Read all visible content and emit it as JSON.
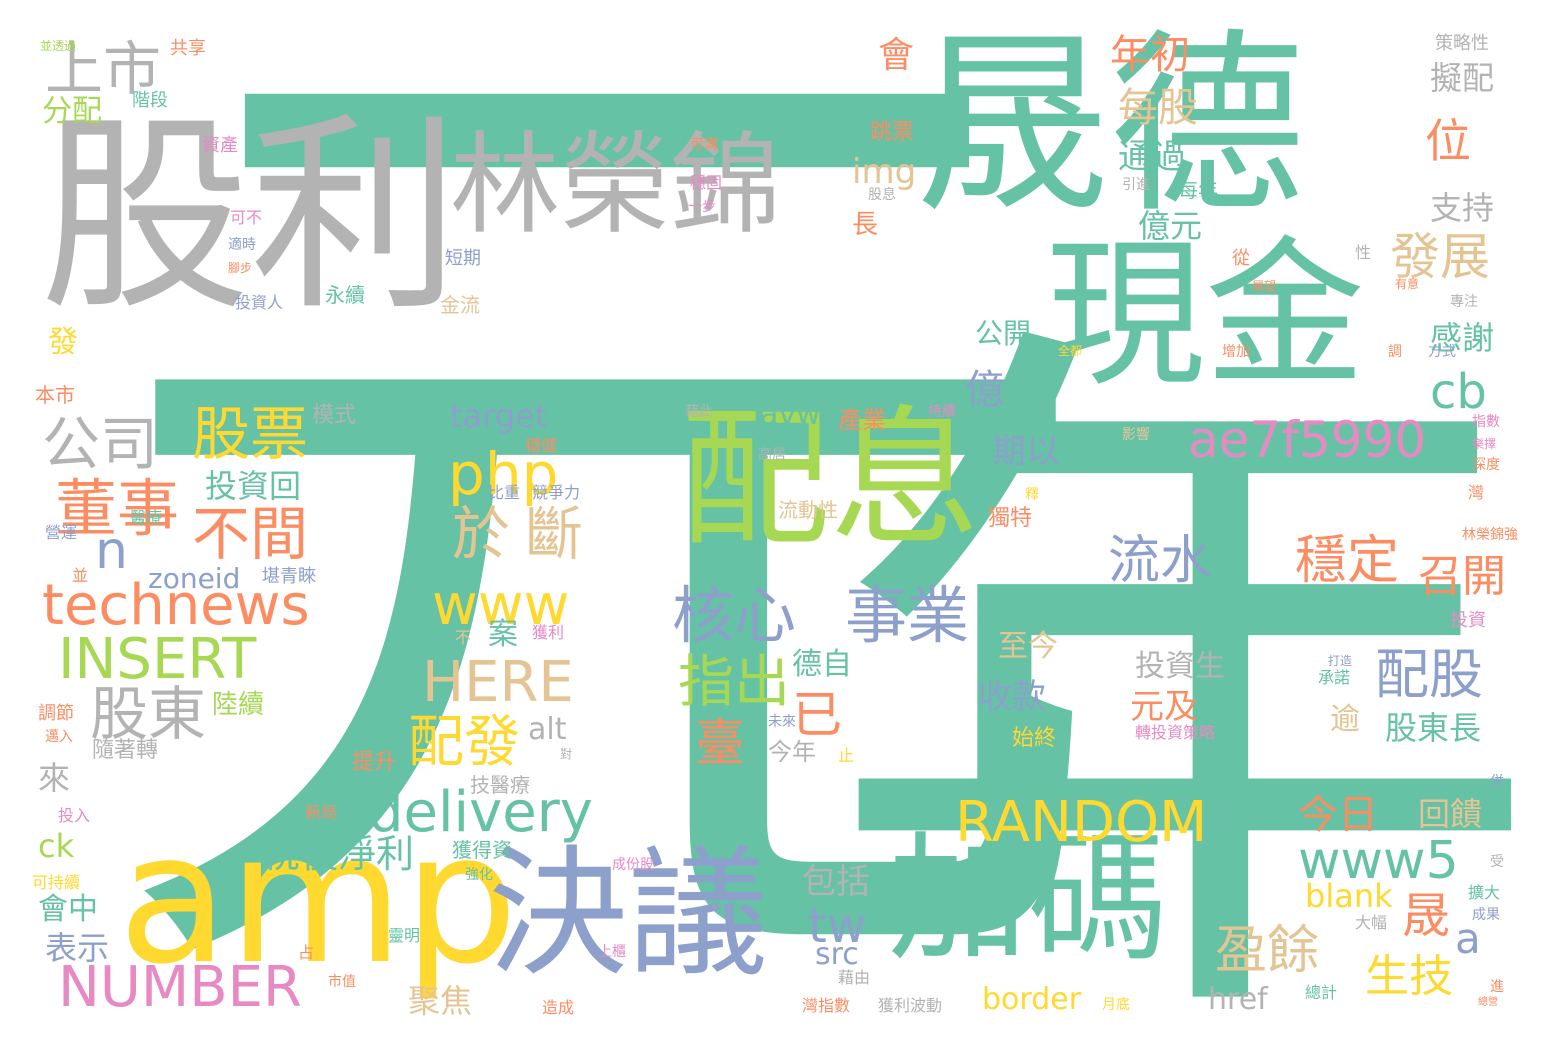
{
  "palette": {
    "teal": "#66c2a5",
    "orange": "#fc8d62",
    "blue": "#8da0cb",
    "pink": "#e78ac3",
    "lime": "#a6d854",
    "yellow": "#ffd92f",
    "tan": "#e5c494",
    "gray": "#b3b3b3"
  },
  "words": [
    {
      "text": "元",
      "color": "teal"
    },
    {
      "text": "年",
      "color": "teal"
    },
    {
      "text": "股利",
      "color": "gray"
    },
    {
      "text": "晟德",
      "color": "teal"
    },
    {
      "text": "林榮錦",
      "color": "gray"
    },
    {
      "text": "現金",
      "color": "teal"
    },
    {
      "text": "配息",
      "color": "lime"
    },
    {
      "text": "amp",
      "color": "yellow"
    },
    {
      "text": "決議",
      "color": "blue"
    },
    {
      "text": "加碼",
      "color": "teal"
    },
    {
      "text": "上市",
      "color": "gray"
    },
    {
      "text": "公司",
      "color": "gray"
    },
    {
      "text": "董事",
      "color": "orange"
    },
    {
      "text": "股票",
      "color": "yellow"
    },
    {
      "text": "不間",
      "color": "orange"
    },
    {
      "text": "n",
      "color": "blue"
    },
    {
      "text": "technews",
      "color": "orange"
    },
    {
      "text": "INSERT",
      "color": "lime"
    },
    {
      "text": "股東",
      "color": "gray"
    },
    {
      "text": "NUMBER",
      "color": "pink"
    },
    {
      "text": "核心",
      "color": "blue"
    },
    {
      "text": "事業",
      "color": "blue"
    },
    {
      "text": "php",
      "color": "yellow"
    },
    {
      "text": "於",
      "color": "tan"
    },
    {
      "text": "斷",
      "color": "tan"
    },
    {
      "text": "www",
      "color": "yellow"
    },
    {
      "text": "HERE",
      "color": "tan"
    },
    {
      "text": "指出",
      "color": "lime"
    },
    {
      "text": "配發",
      "color": "yellow"
    },
    {
      "text": "已",
      "color": "orange"
    },
    {
      "text": "臺",
      "color": "orange"
    },
    {
      "text": "delivery",
      "color": "teal"
    },
    {
      "text": "稅後淨利",
      "color": "teal"
    },
    {
      "text": "流水",
      "color": "blue"
    },
    {
      "text": "ae7f5990",
      "color": "pink"
    },
    {
      "text": "億",
      "color": "blue"
    },
    {
      "text": "穩定",
      "color": "orange"
    },
    {
      "text": "召開",
      "color": "orange"
    },
    {
      "text": "配股",
      "color": "blue"
    },
    {
      "text": "RANDOM",
      "color": "yellow"
    },
    {
      "text": "www5",
      "color": "teal"
    },
    {
      "text": "晟",
      "color": "orange"
    },
    {
      "text": "盈餘",
      "color": "tan"
    },
    {
      "text": "生技",
      "color": "yellow"
    },
    {
      "text": "a",
      "color": "blue"
    },
    {
      "text": "tw",
      "color": "blue"
    },
    {
      "text": "發展",
      "color": "tan"
    },
    {
      "text": "cb",
      "color": "teal"
    },
    {
      "text": "位",
      "color": "orange"
    },
    {
      "text": "每股",
      "color": "tan"
    },
    {
      "text": "年初",
      "color": "orange"
    },
    {
      "text": "通過",
      "color": "teal"
    },
    {
      "text": "億元",
      "color": "teal"
    },
    {
      "text": "會",
      "color": "orange"
    },
    {
      "text": "img",
      "color": "tan"
    },
    {
      "text": "擬配",
      "color": "gray"
    },
    {
      "text": "支持",
      "color": "gray"
    },
    {
      "text": "感謝",
      "color": "teal"
    },
    {
      "text": "今日",
      "color": "orange"
    },
    {
      "text": "回饋",
      "color": "tan"
    },
    {
      "text": "股東長",
      "color": "teal"
    },
    {
      "text": "元及",
      "color": "orange"
    },
    {
      "text": "逾",
      "color": "tan"
    },
    {
      "text": "投資生",
      "color": "gray"
    },
    {
      "text": "收款",
      "color": "blue"
    },
    {
      "text": "期以",
      "color": "blue"
    },
    {
      "text": "至今",
      "color": "tan"
    },
    {
      "text": "德自",
      "color": "teal"
    },
    {
      "text": "avw",
      "color": "teal"
    },
    {
      "text": "target",
      "color": "blue"
    },
    {
      "text": "投資回",
      "color": "teal"
    },
    {
      "text": "zoneid",
      "color": "blue"
    },
    {
      "text": "包括",
      "color": "gray"
    },
    {
      "text": "border",
      "color": "yellow"
    },
    {
      "text": "href",
      "color": "gray"
    },
    {
      "text": "blank",
      "color": "yellow"
    },
    {
      "text": "src",
      "color": "blue"
    },
    {
      "text": "聚焦",
      "color": "tan"
    },
    {
      "text": "alt",
      "color": "gray"
    },
    {
      "text": "案",
      "color": "teal"
    },
    {
      "text": "陸續",
      "color": "lime"
    },
    {
      "text": "來",
      "color": "gray"
    },
    {
      "text": "ck",
      "color": "lime"
    },
    {
      "text": "會中",
      "color": "teal"
    },
    {
      "text": "表示",
      "color": "blue"
    },
    {
      "text": "分配",
      "color": "lime"
    },
    {
      "text": "階段",
      "color": "teal"
    },
    {
      "text": "發",
      "color": "yellow"
    },
    {
      "text": "公開",
      "color": "teal"
    },
    {
      "text": "長",
      "color": "orange"
    },
    {
      "text": "跳票",
      "color": "orange"
    },
    {
      "text": "資產",
      "color": "pink"
    },
    {
      "text": "產業",
      "color": "orange"
    },
    {
      "text": "兌現",
      "color": "teal"
    },
    {
      "text": "始終",
      "color": "yellow"
    },
    {
      "text": "獨特",
      "color": "orange"
    },
    {
      "text": "提升",
      "color": "orange"
    },
    {
      "text": "今年",
      "color": "gray"
    },
    {
      "text": "隨著轉",
      "color": "gray"
    },
    {
      "text": "模式",
      "color": "gray"
    },
    {
      "text": "豐沛",
      "color": "teal"
    },
    {
      "text": "流動性",
      "color": "tan"
    },
    {
      "text": "獲得資",
      "color": "teal"
    },
    {
      "text": "技醫療",
      "color": "gray"
    },
    {
      "text": "永續",
      "color": "teal"
    },
    {
      "text": "投資人",
      "color": "blue"
    },
    {
      "text": "金流",
      "color": "tan"
    },
    {
      "text": "短期",
      "color": "blue"
    },
    {
      "text": "共享",
      "color": "orange"
    },
    {
      "text": "策略性",
      "color": "gray"
    },
    {
      "text": "本市",
      "color": "orange"
    },
    {
      "text": "每年",
      "color": "teal"
    },
    {
      "text": "股息",
      "color": "gray"
    },
    {
      "text": "引進",
      "color": "gray"
    },
    {
      "text": "可不",
      "color": "pink"
    },
    {
      "text": "穩固",
      "color": "pink"
    },
    {
      "text": "一步",
      "color": "pink"
    },
    {
      "text": "可溝",
      "color": "orange"
    },
    {
      "text": "藉此",
      "color": "gray"
    },
    {
      "text": "高居",
      "color": "gray"
    },
    {
      "text": "比重",
      "color": "blue"
    },
    {
      "text": "競爭力",
      "color": "blue"
    },
    {
      "text": "穩健",
      "color": "orange"
    },
    {
      "text": "獲利",
      "color": "pink"
    },
    {
      "text": "不",
      "color": "tan"
    },
    {
      "text": "堪青睞",
      "color": "blue"
    },
    {
      "text": "醫療",
      "color": "teal"
    },
    {
      "text": "營運",
      "color": "blue"
    },
    {
      "text": "並",
      "color": "orange"
    },
    {
      "text": "調節",
      "color": "orange"
    },
    {
      "text": "邁入",
      "color": "orange"
    },
    {
      "text": "投入",
      "color": "pink"
    },
    {
      "text": "新局",
      "color": "orange"
    },
    {
      "text": "強化",
      "color": "teal"
    },
    {
      "text": "可持續",
      "color": "yellow"
    },
    {
      "text": "占",
      "color": "orange"
    },
    {
      "text": "市值",
      "color": "orange"
    },
    {
      "text": "靈明",
      "color": "teal"
    },
    {
      "text": "造成",
      "color": "orange"
    },
    {
      "text": "上櫃",
      "color": "pink"
    },
    {
      "text": "成份股",
      "color": "pink"
    },
    {
      "text": "藉由",
      "color": "gray"
    },
    {
      "text": "灣指數",
      "color": "orange"
    },
    {
      "text": "獲利波動",
      "color": "gray"
    },
    {
      "text": "月底",
      "color": "yellow"
    },
    {
      "text": "第四名",
      "color": "teal"
    },
    {
      "text": "集團",
      "color": "teal"
    },
    {
      "text": "總計",
      "color": "teal"
    },
    {
      "text": "大幅",
      "color": "gray"
    },
    {
      "text": "擴大",
      "color": "teal"
    },
    {
      "text": "成果",
      "color": "blue"
    },
    {
      "text": "承諾",
      "color": "teal"
    },
    {
      "text": "打造",
      "color": "blue"
    },
    {
      "text": "轉投資策略",
      "color": "pink"
    },
    {
      "text": "未來",
      "color": "blue"
    },
    {
      "text": "止",
      "color": "yellow"
    },
    {
      "text": "林榮錦強",
      "color": "orange"
    },
    {
      "text": "投資",
      "color": "pink"
    },
    {
      "text": "影響",
      "color": "tan"
    },
    {
      "text": "持續",
      "color": "pink"
    },
    {
      "text": "深度",
      "color": "orange"
    },
    {
      "text": "指數",
      "color": "pink"
    },
    {
      "text": "樂擇",
      "color": "pink"
    },
    {
      "text": "灣",
      "color": "orange"
    },
    {
      "text": "併",
      "color": "blue"
    },
    {
      "text": "受",
      "color": "gray"
    },
    {
      "text": "進",
      "color": "orange"
    },
    {
      "text": "方式",
      "color": "blue"
    },
    {
      "text": "專注",
      "color": "gray"
    },
    {
      "text": "調",
      "color": "orange"
    },
    {
      "text": "增加",
      "color": "orange"
    },
    {
      "text": "從",
      "color": "orange"
    },
    {
      "text": "展望",
      "color": "orange"
    },
    {
      "text": "性",
      "color": "gray"
    },
    {
      "text": "有意",
      "color": "orange"
    },
    {
      "text": "適時",
      "color": "blue"
    },
    {
      "text": "腳步",
      "color": "orange"
    },
    {
      "text": "並透過",
      "color": "lime"
    },
    {
      "text": "對",
      "color": "gray"
    },
    {
      "text": "釋",
      "color": "yellow"
    },
    {
      "text": "全都",
      "color": "yellow"
    },
    {
      "text": "總營",
      "color": "orange"
    }
  ]
}
